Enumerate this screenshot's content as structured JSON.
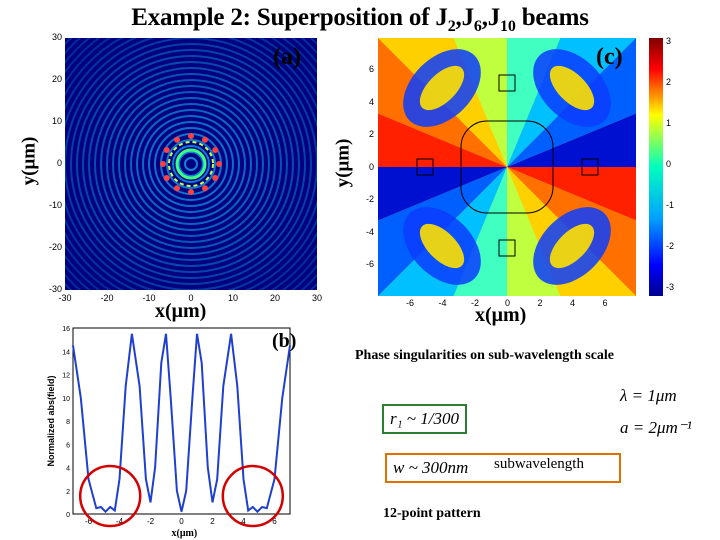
{
  "title": {
    "prefix": "Example 2: Superposition of J",
    "s1": "2",
    "c1": ",J",
    "s2": "6",
    "c2": ",J",
    "s3": "10",
    "suffix": " beams"
  },
  "panels": {
    "a": {
      "label": "(a)",
      "xlabel": "x(μm)",
      "ylabel": "y(μm)",
      "xticks": [
        "-30",
        "-20",
        "-10",
        "0",
        "10",
        "20",
        "30"
      ],
      "yticks": [
        "30",
        "20",
        "10",
        "0",
        "-10",
        "-20",
        "-30"
      ]
    },
    "c": {
      "label": "(c)",
      "xlabel": "x(μm)",
      "ylabel": "y(μm)",
      "xticks": [
        "-6",
        "-4",
        "-2",
        "0",
        "2",
        "4",
        "6"
      ],
      "yticks": [
        "6",
        "4",
        "2",
        "0",
        "-2",
        "-4",
        "-6"
      ],
      "colorbar_ticks": [
        "3",
        "2",
        "1",
        "0",
        "-1",
        "-2",
        "-3"
      ]
    },
    "b": {
      "label": "(b)",
      "xlabel": "x(μm)",
      "ylabel": "Normalized abs(field)",
      "xticks": [
        "-6",
        "-4",
        "-2",
        "0",
        "2",
        "4",
        "6"
      ],
      "yticks": [
        "16",
        "14",
        "12",
        "10",
        "8",
        "6",
        "4",
        "2",
        "0"
      ]
    }
  },
  "annotations": {
    "phase_caption": "Phase singularities on sub-wavelength scale",
    "lambda_eq": "λ = 1μm",
    "a_eq": "a = 2μm⁻¹",
    "r_eq": "r₁ ~ 1/300",
    "w_eq": "w ~ 300nm",
    "subwavelength": "subwavelength",
    "pattern": "12-point pattern"
  },
  "colors": {
    "accent_red": "#d40000",
    "box_green": "#2e7d32",
    "box_orange": "#e07000",
    "line_blue": "#1f3fcf"
  },
  "chart_data": {
    "type": "line",
    "title": "(b)",
    "xlabel": "x(μm)",
    "ylabel": "Normalized abs(field)",
    "xlim": [
      -7,
      7
    ],
    "ylim": [
      0,
      16
    ],
    "series": [
      {
        "x": [
          -7,
          -6.5,
          -6,
          -5.5,
          -5.2,
          -4.9,
          -4.6,
          -4.3,
          -4,
          -3.6,
          -3.2,
          -2.7,
          -2.3,
          -2,
          -1.7,
          -1.3,
          -1,
          -0.7,
          -0.3,
          0,
          0.3,
          0.7,
          1,
          1.3,
          1.7,
          2,
          2.3,
          2.7,
          3.2,
          3.6,
          4,
          4.3,
          4.6,
          4.9,
          5.2,
          5.5,
          6,
          6.5,
          7
        ],
        "values": [
          14.5,
          10,
          3,
          0.5,
          0.6,
          0.2,
          0.6,
          0.3,
          3,
          11,
          15.5,
          11,
          3,
          1,
          4,
          13,
          15.5,
          10,
          2,
          0.2,
          2,
          10,
          15.5,
          13,
          4,
          1,
          3,
          11,
          15.5,
          11,
          3,
          0.3,
          0.6,
          0.2,
          0.6,
          0.5,
          3,
          10,
          14.5
        ]
      }
    ]
  }
}
